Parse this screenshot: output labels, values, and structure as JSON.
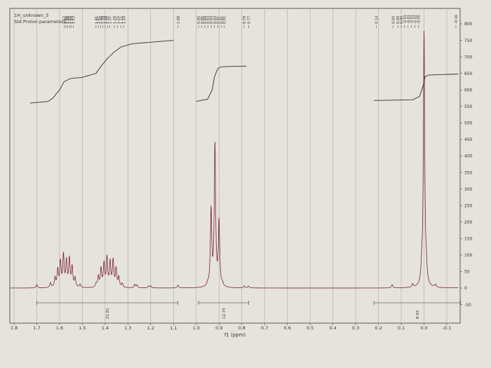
{
  "header": {
    "title": "1H_unknown_3",
    "subtitle": "Std Proton parameters"
  },
  "chart_data": {
    "type": "line",
    "xlabel": "f1 (ppm)",
    "ylabel": "",
    "xlim": [
      1.85,
      -0.15
    ],
    "ylim": [
      -60,
      820
    ],
    "x_reversed": true,
    "grid": true,
    "x_ticks": [
      "1.8",
      "1.7",
      "1.6",
      "1.5",
      "1.4",
      "1.3",
      "1.2",
      "1.1",
      "1.0",
      "0.9",
      "0.8",
      "0.7",
      "0.6",
      "0.5",
      "0.4",
      "0.3",
      "0.2",
      "0.1",
      "0.0",
      "-0.1"
    ],
    "x_tick_values": [
      1.8,
      1.7,
      1.6,
      1.5,
      1.4,
      1.3,
      1.2,
      1.1,
      1.0,
      0.9,
      0.8,
      0.7,
      0.6,
      0.5,
      0.4,
      0.3,
      0.2,
      0.1,
      0.0,
      -0.1
    ],
    "y_ticks": [
      "800",
      "750",
      "700",
      "650",
      "600",
      "550",
      "500",
      "450",
      "400",
      "350",
      "300",
      "250",
      "200",
      "150",
      "100",
      "50",
      "0",
      "-50"
    ],
    "y_tick_values": [
      800,
      750,
      700,
      650,
      600,
      550,
      500,
      450,
      400,
      350,
      300,
      250,
      200,
      150,
      100,
      50,
      0,
      -50
    ],
    "colors": {
      "spectrum": "#7a2230",
      "integral": "#2f2f2f",
      "grid": "#a9a9a9",
      "frame": "#555555"
    },
    "peaks": [
      {
        "x": 1.7,
        "y": 10
      },
      {
        "x": 1.64,
        "y": 14
      },
      {
        "x": 1.62,
        "y": 28
      },
      {
        "x": 1.608,
        "y": 52
      },
      {
        "x": 1.596,
        "y": 75
      },
      {
        "x": 1.583,
        "y": 95
      },
      {
        "x": 1.57,
        "y": 78
      },
      {
        "x": 1.557,
        "y": 84
      },
      {
        "x": 1.545,
        "y": 60
      },
      {
        "x": 1.532,
        "y": 28
      },
      {
        "x": 1.51,
        "y": 10
      },
      {
        "x": 1.44,
        "y": 10
      },
      {
        "x": 1.43,
        "y": 32
      },
      {
        "x": 1.418,
        "y": 55
      },
      {
        "x": 1.405,
        "y": 70
      },
      {
        "x": 1.392,
        "y": 88
      },
      {
        "x": 1.378,
        "y": 75
      },
      {
        "x": 1.365,
        "y": 80
      },
      {
        "x": 1.352,
        "y": 55
      },
      {
        "x": 1.34,
        "y": 30
      },
      {
        "x": 1.325,
        "y": 12
      },
      {
        "x": 1.27,
        "y": 10
      },
      {
        "x": 1.26,
        "y": 8
      },
      {
        "x": 1.21,
        "y": 6
      },
      {
        "x": 1.2,
        "y": 6
      },
      {
        "x": 1.08,
        "y": 8
      },
      {
        "x": 0.95,
        "y": 8
      },
      {
        "x": 0.935,
        "y": 230
      },
      {
        "x": 0.918,
        "y": 430
      },
      {
        "x": 0.9,
        "y": 195
      },
      {
        "x": 0.885,
        "y": 8
      },
      {
        "x": 0.79,
        "y": 6
      },
      {
        "x": 0.77,
        "y": 6
      },
      {
        "x": 0.14,
        "y": 10
      },
      {
        "x": 0.05,
        "y": 10
      },
      {
        "x": 0.01,
        "y": 40
      },
      {
        "x": 0.0,
        "y": 770
      },
      {
        "x": -0.01,
        "y": 40
      },
      {
        "x": -0.05,
        "y": 8
      },
      {
        "x": -0.16,
        "y": 8
      }
    ],
    "integral_curves": [
      {
        "x": [
          1.73,
          1.65,
          1.63,
          1.6,
          1.58,
          1.55,
          1.5,
          1.44,
          1.42,
          1.39,
          1.36,
          1.33,
          1.28,
          1.1
        ],
        "y": [
          560,
          565,
          575,
          600,
          625,
          635,
          638,
          650,
          670,
          695,
          715,
          730,
          740,
          750
        ]
      },
      {
        "x": [
          1.0,
          0.95,
          0.93,
          0.92,
          0.905,
          0.89,
          0.85,
          0.78
        ],
        "y": [
          565,
          572,
          600,
          640,
          665,
          670,
          671,
          672
        ]
      },
      {
        "x": [
          0.22,
          0.05,
          0.02,
          0.005,
          -0.005,
          -0.02,
          -0.15
        ],
        "y": [
          568,
          570,
          580,
          610,
          640,
          645,
          648
        ]
      }
    ],
    "integrals": [
      {
        "from": 1.7,
        "to": 1.08,
        "value": "21.81"
      },
      {
        "from": 0.99,
        "to": 0.77,
        "value": "12.75"
      },
      {
        "from": 0.22,
        "to": -0.16,
        "value": "8.93"
      }
    ],
    "peak_labels": [
      "1.57",
      "1.56",
      "1.55",
      "1.55",
      "1.54",
      "1.53",
      "1.41",
      "1.41",
      "1.40",
      "1.39",
      "1.39",
      "1.37",
      "1.37",
      "1.26",
      "1.25",
      "1.21",
      "1.20",
      "1.08",
      "0.95",
      "0.95",
      "0.94",
      "0.93",
      "0.93",
      "0.93",
      "0.91",
      "0.91",
      "0.91",
      "0.79",
      "0.77",
      "0.14",
      "0.04",
      "0.00",
      "0.00",
      "-0.01",
      "-0.01",
      "-0.01",
      "-0.02",
      "-0.05",
      "-0.16"
    ],
    "peak_label_x": [
      1.58,
      1.572,
      1.564,
      1.556,
      1.548,
      1.54,
      1.44,
      1.43,
      1.42,
      1.41,
      1.4,
      1.39,
      1.38,
      1.36,
      1.345,
      1.33,
      1.318,
      1.08,
      0.99,
      0.975,
      0.962,
      0.948,
      0.934,
      0.92,
      0.905,
      0.89,
      0.878,
      0.79,
      0.77,
      0.21,
      0.135,
      0.115,
      0.1,
      0.085,
      0.07,
      0.055,
      0.04,
      0.025,
      -0.14
    ]
  }
}
